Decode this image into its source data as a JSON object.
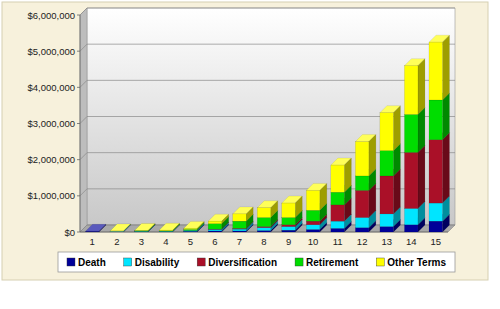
{
  "chart_data": {
    "type": "bar",
    "stacked": true,
    "grid": true,
    "legend": "bottom",
    "categories": [
      "1",
      "2",
      "3",
      "4",
      "5",
      "6",
      "7",
      "8",
      "9",
      "10",
      "11",
      "12",
      "13",
      "14",
      "15"
    ],
    "series": [
      {
        "name": "Death",
        "color": "#000099",
        "values": [
          20000,
          10000,
          10000,
          10000,
          20000,
          30000,
          30000,
          40000,
          50000,
          70000,
          100000,
          120000,
          150000,
          200000,
          300000
        ]
      },
      {
        "name": "Disability",
        "color": "#00e5ff",
        "values": [
          0,
          10000,
          10000,
          10000,
          20000,
          40000,
          50000,
          80000,
          100000,
          130000,
          200000,
          280000,
          350000,
          450000,
          500000
        ]
      },
      {
        "name": "Diversification",
        "color": "#aa1028",
        "values": [
          0,
          0,
          0,
          0,
          0,
          10000,
          20000,
          30000,
          50000,
          100000,
          450000,
          750000,
          1050000,
          1550000,
          1750000
        ]
      },
      {
        "name": "Retirement",
        "color": "#00dd00",
        "values": [
          0,
          0,
          10000,
          10000,
          30000,
          150000,
          200000,
          250000,
          200000,
          300000,
          350000,
          400000,
          700000,
          1050000,
          1100000
        ]
      },
      {
        "name": "Other Terms",
        "color": "#ffff00",
        "values": [
          0,
          10000,
          10000,
          20000,
          30000,
          70000,
          200000,
          270000,
          400000,
          550000,
          750000,
          950000,
          1050000,
          1350000,
          1600000
        ]
      }
    ],
    "ylim": [
      0,
      6000000
    ],
    "yticks": [
      {
        "value": 0,
        "label": "$0"
      },
      {
        "value": 1000000,
        "label": "$1,000,000"
      },
      {
        "value": 2000000,
        "label": "$2,000,000"
      },
      {
        "value": 3000000,
        "label": "$3,000,000"
      },
      {
        "value": 4000000,
        "label": "$4,000,000"
      },
      {
        "value": 5000000,
        "label": "$5,000,000"
      },
      {
        "value": 6000000,
        "label": "$6,000,000"
      }
    ]
  }
}
